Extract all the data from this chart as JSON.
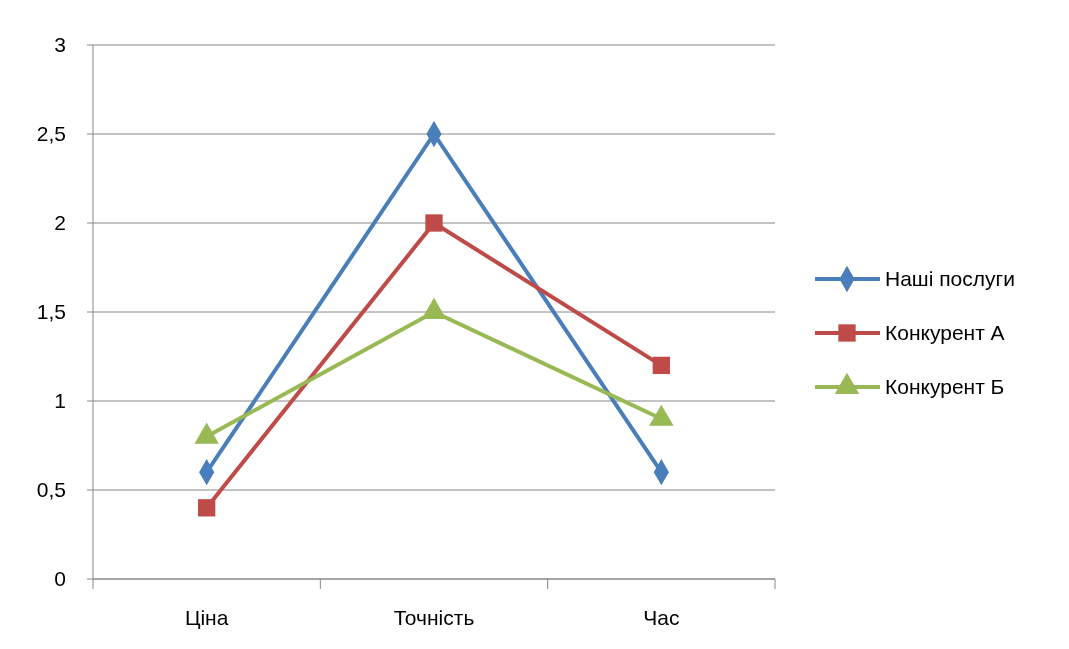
{
  "chart_data": {
    "type": "line",
    "categories": [
      "Ціна",
      "Точність",
      "Час"
    ],
    "series": [
      {
        "name": "Наші послуги",
        "color": "#4a7ebb",
        "marker": "diamond",
        "values": [
          0.6,
          2.5,
          0.6
        ]
      },
      {
        "name": "Конкурент А",
        "color": "#be4b48",
        "marker": "square",
        "values": [
          0.4,
          2.0,
          1.2
        ]
      },
      {
        "name": "Конкурент Б",
        "color": "#98b954",
        "marker": "triangle",
        "values": [
          0.8,
          1.5,
          0.9
        ]
      }
    ],
    "ylim": [
      0,
      3
    ],
    "yticks": [
      0,
      {
        "value": 0.5,
        "label": "0,5"
      },
      1,
      {
        "value": 1.5,
        "label": "1,5"
      },
      2,
      {
        "value": 2.5,
        "label": "2,5"
      },
      3
    ],
    "grid": "y",
    "legend": "right"
  }
}
